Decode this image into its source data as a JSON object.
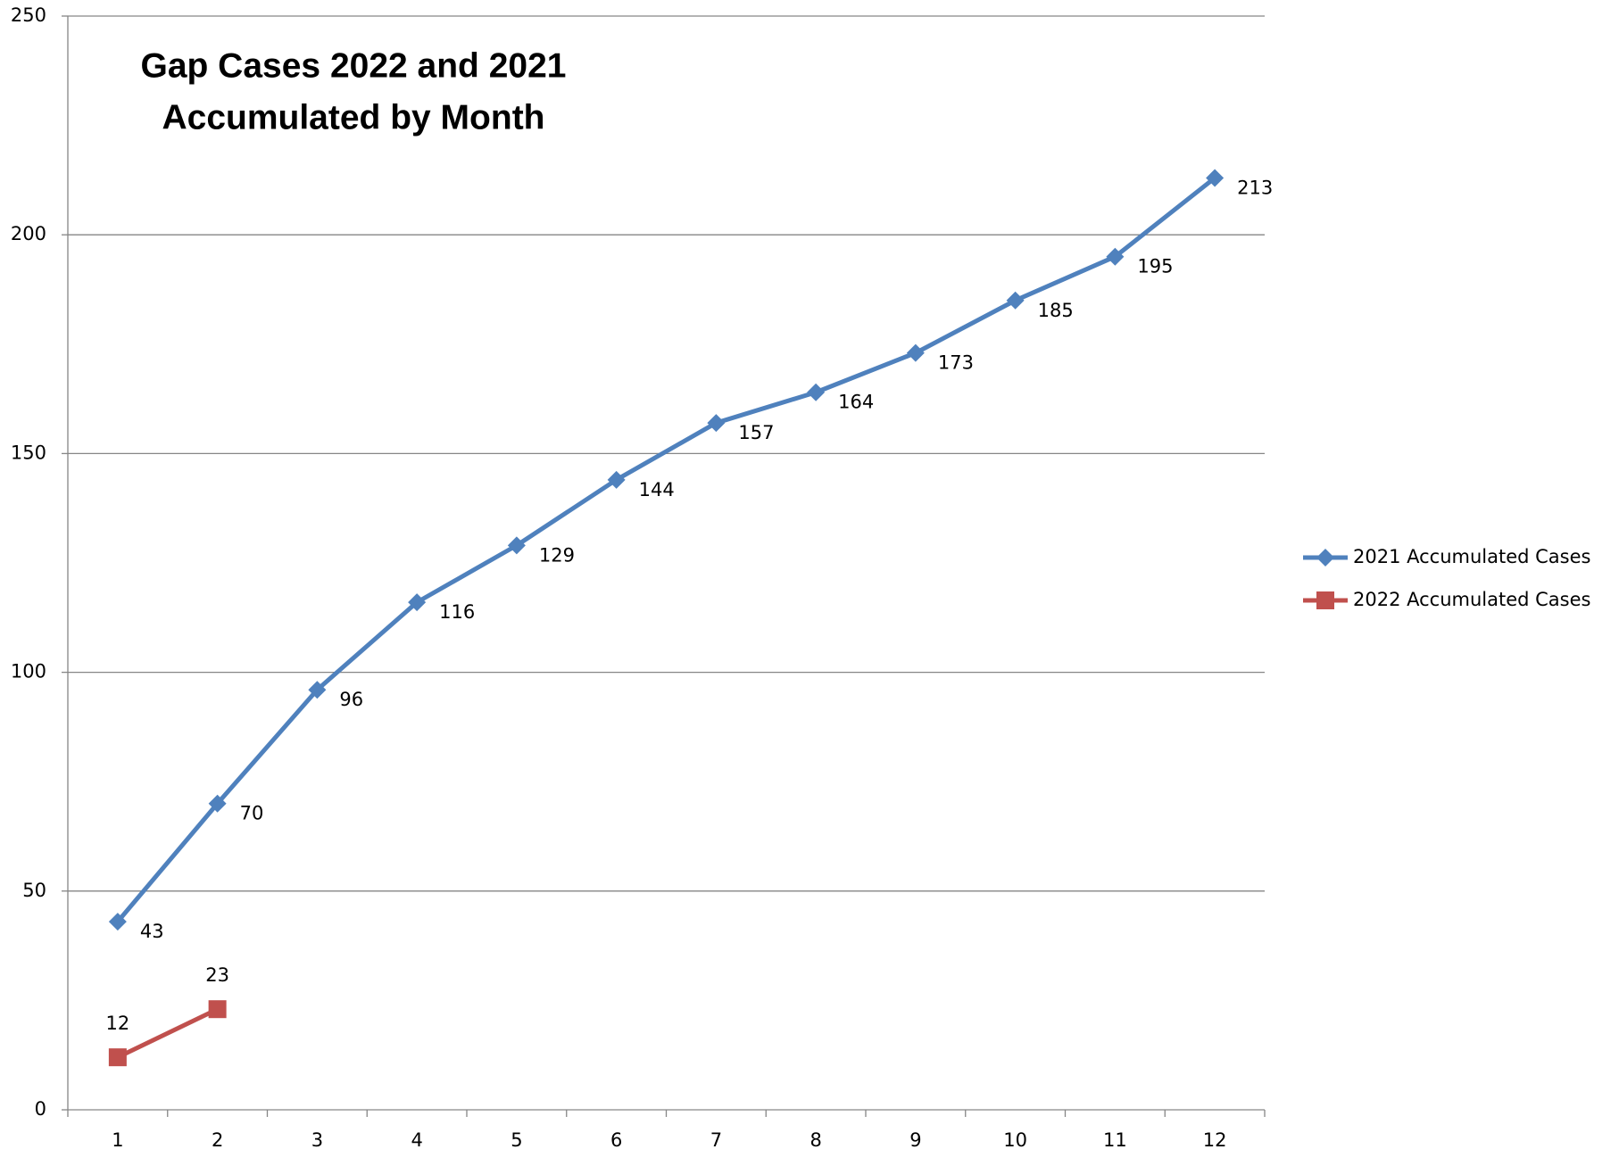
{
  "chart_data": {
    "type": "line",
    "title": [
      "Gap Cases 2022 and 2021",
      "Accumulated by Month"
    ],
    "categories": [
      "1",
      "2",
      "3",
      "4",
      "5",
      "6",
      "7",
      "8",
      "9",
      "10",
      "11",
      "12"
    ],
    "series": [
      {
        "name": "2021 Accumulated Cases",
        "color": "#4f81bd",
        "marker": "diamond",
        "values": [
          43,
          70,
          96,
          116,
          129,
          144,
          157,
          164,
          173,
          185,
          195,
          213
        ]
      },
      {
        "name": "2022 Accumulated Cases",
        "color": "#c0504d",
        "marker": "square",
        "values": [
          12,
          23,
          null,
          null,
          null,
          null,
          null,
          null,
          null,
          null,
          null,
          null
        ]
      }
    ],
    "ylim": [
      0,
      250
    ],
    "yticks": [
      0,
      50,
      100,
      150,
      200,
      250
    ],
    "grid": true,
    "legend": "right"
  }
}
